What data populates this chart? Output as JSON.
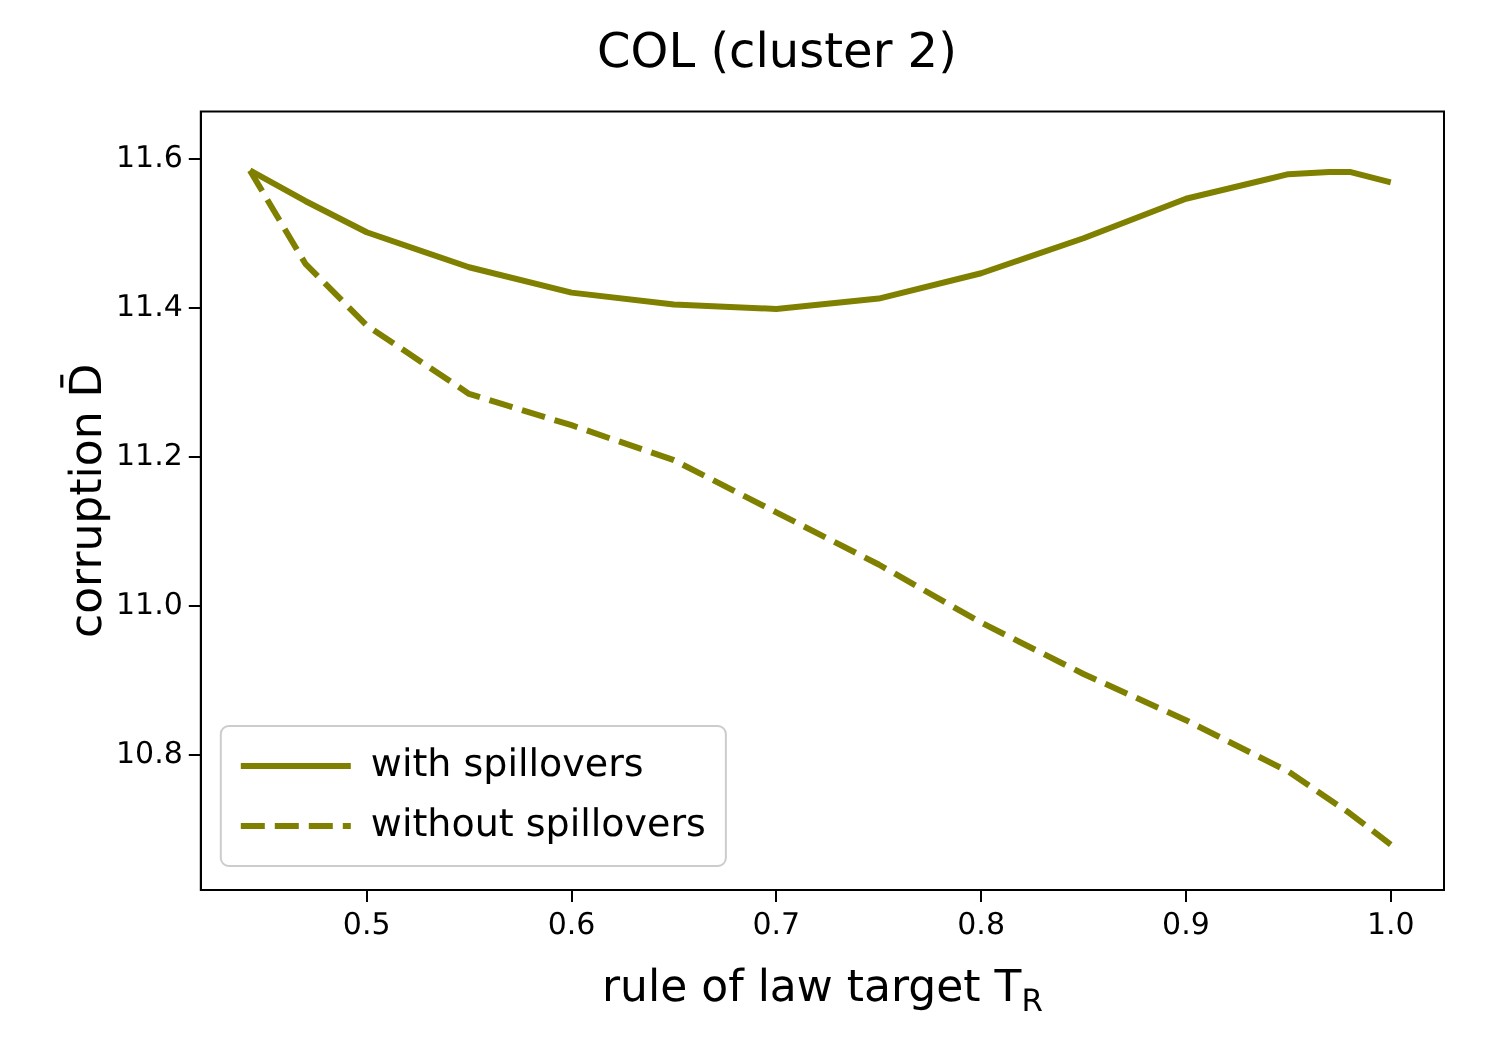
{
  "chart_data": {
    "type": "line",
    "title": "COL (cluster 2)",
    "xlabel": "rule of law target T$_{R}$",
    "ylabel": "corruption D̄",
    "xlim": [
      0.419,
      1.026
    ],
    "ylim": [
      10.619,
      11.664
    ],
    "xticks": [
      0.5,
      0.6,
      0.7,
      0.8,
      0.9,
      {
        "value": 1,
        "label": "1.0"
      }
    ],
    "yticks": [
      10.8,
      {
        "value": 11,
        "label": "11.0"
      },
      11.2,
      11.4,
      11.6
    ],
    "grid": false,
    "legend": "bottom left",
    "marker": "none",
    "series": [
      {
        "name": "with spillovers",
        "color": "#808000",
        "line_style": "solid",
        "x": [
          0.443,
          0.47,
          0.5,
          0.55,
          0.6,
          0.65,
          0.7,
          0.75,
          0.8,
          0.85,
          0.9,
          0.95,
          0.97,
          0.98,
          1.0
        ],
        "values": [
          11.585,
          11.544,
          11.502,
          11.455,
          11.421,
          11.405,
          11.399,
          11.413,
          11.447,
          11.494,
          11.547,
          11.58,
          11.583,
          11.583,
          11.569
        ]
      },
      {
        "name": "without spillovers",
        "color": "#808000",
        "line_style": "dashed",
        "x": [
          0.443,
          0.47,
          0.5,
          0.55,
          0.6,
          0.65,
          0.7,
          0.75,
          0.8,
          0.85,
          0.9,
          0.95,
          0.98,
          1.0
        ],
        "values": [
          11.585,
          11.46,
          11.377,
          11.285,
          11.243,
          11.196,
          11.126,
          11.056,
          10.978,
          10.909,
          10.847,
          10.778,
          10.722,
          10.68
        ]
      }
    ]
  }
}
